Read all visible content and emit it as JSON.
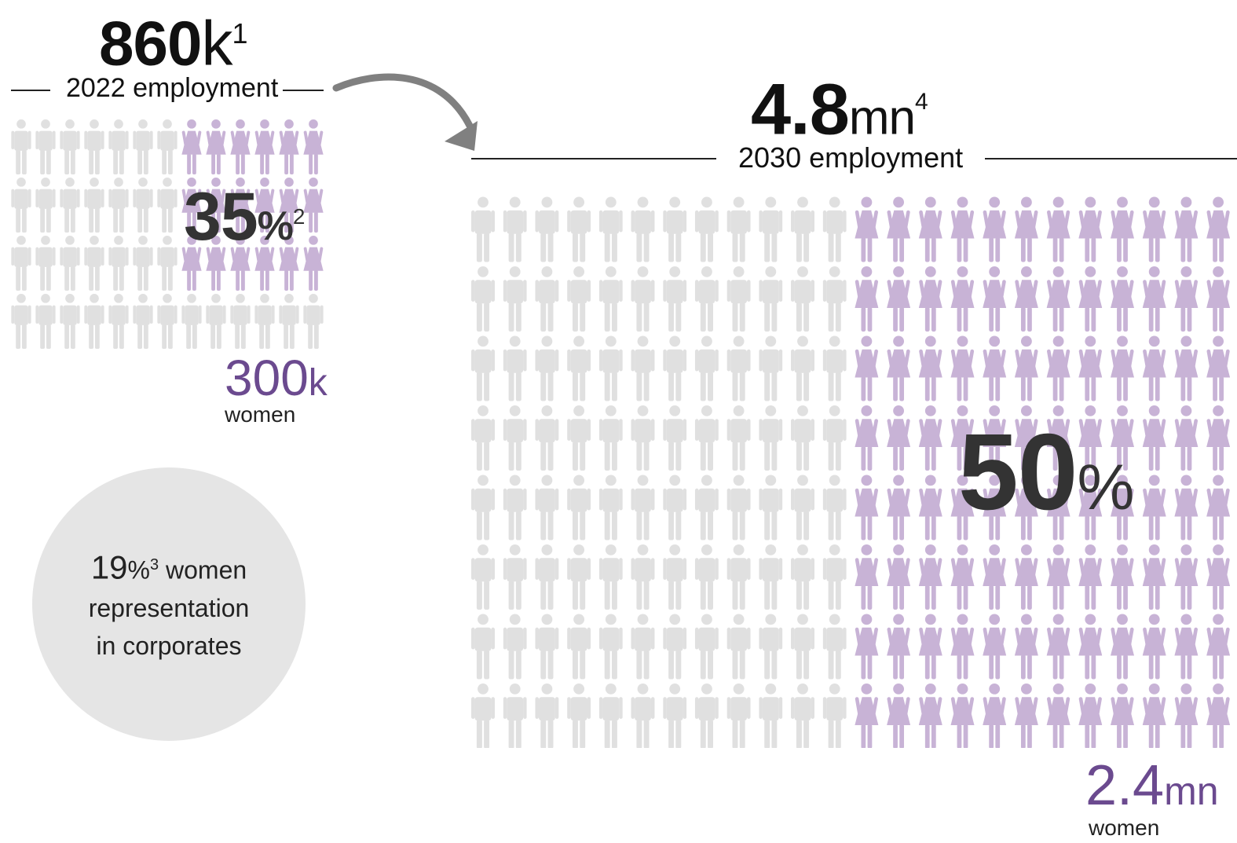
{
  "colors": {
    "men": "#e0e0e0",
    "women": "#c8b3d6",
    "accent": "#6b4a8f",
    "overlay_text": "#333333",
    "circle": "#e5e5e5"
  },
  "icons": {
    "men": "person-icon",
    "women": "woman-icon",
    "arrow": "curved-arrow-icon"
  },
  "employment_2022": {
    "value": "860",
    "unit": "k",
    "footnote": "1",
    "label": "2022 employment",
    "women_share_value": "35",
    "women_share_unit": "%",
    "women_share_footnote": "2",
    "women_count_value": "300",
    "women_count_unit": "k",
    "women_count_label": "women"
  },
  "employment_2030": {
    "value": "4.8",
    "unit": "mn",
    "footnote": "4",
    "label": "2030 employment",
    "women_share_value": "50",
    "women_share_unit": "%",
    "women_count_value": "2.4",
    "women_count_unit": "mn",
    "women_count_label": "women"
  },
  "corporate_representation": {
    "value": "19",
    "unit": "%",
    "footnote": "3",
    "line1": "women",
    "line2": "representation",
    "line3": "in corporates"
  },
  "chart_data": [
    {
      "type": "table",
      "year": "2022",
      "icon_grid": {
        "rows": 4,
        "cols": 13,
        "women_cols": 6
      },
      "women_icon_rows": 3,
      "total_employment": "860k",
      "women_share_percent": 35,
      "women_employment": "300k"
    },
    {
      "type": "table",
      "year": "2030",
      "icon_grid": {
        "rows": 8,
        "cols": 24,
        "women_cols": 12
      },
      "total_employment": "4.8mn",
      "women_share_percent": 50,
      "women_employment": "2.4mn"
    }
  ]
}
